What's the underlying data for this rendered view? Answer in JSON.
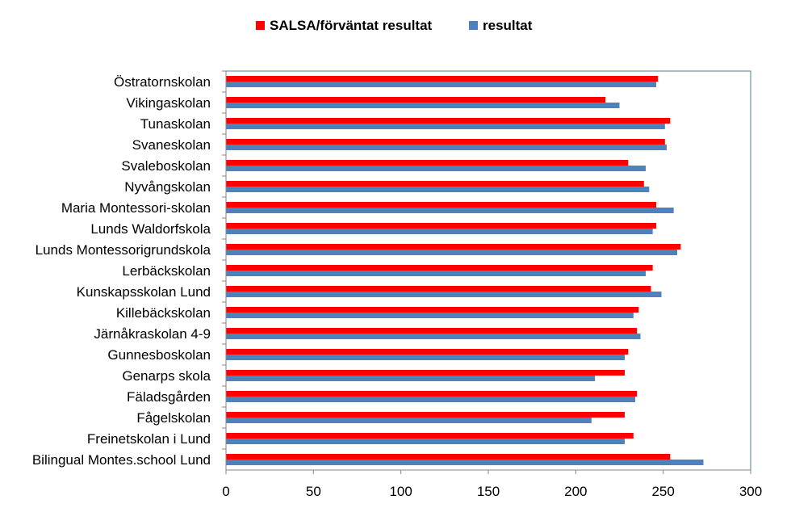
{
  "chart_data": {
    "type": "bar",
    "orientation": "horizontal",
    "title": "",
    "xlabel": "",
    "ylabel": "",
    "xlim": [
      0,
      300
    ],
    "ticks": [
      "0",
      "50",
      "100",
      "150",
      "200",
      "250",
      "300"
    ],
    "grid": false,
    "legend_position": "top",
    "categories": [
      "Östratornskolan",
      "Vikingaskolan",
      "Tunaskolan",
      "Svaneskolan",
      "Svaleboskolan",
      "Nyvångskolan",
      "Maria Montessori-skolan",
      "Lunds Waldorfskola",
      "Lunds Montessorigrundskola",
      "Lerbäckskolan",
      "Kunskapsskolan Lund",
      "Killebäckskolan",
      "Järnåkraskolan 4-9",
      "Gunnesboskolan",
      "Genarps skola",
      "Fäladsgården",
      "Fågelskolan",
      "Freinetskolan i Lund",
      "Bilingual Montes.school Lund"
    ],
    "series": [
      {
        "name": "SALSA/förväntat resultat",
        "color": "#ff0000",
        "values": [
          247,
          217,
          254,
          251,
          230,
          239,
          246,
          246,
          260,
          244,
          243,
          236,
          235,
          230,
          228,
          235,
          228,
          233,
          254
        ]
      },
      {
        "name": "resultat",
        "color": "#4f81bd",
        "values": [
          246,
          225,
          251,
          252,
          240,
          242,
          256,
          244,
          258,
          240,
          249,
          233,
          237,
          228,
          211,
          234,
          209,
          228,
          273
        ]
      }
    ]
  }
}
